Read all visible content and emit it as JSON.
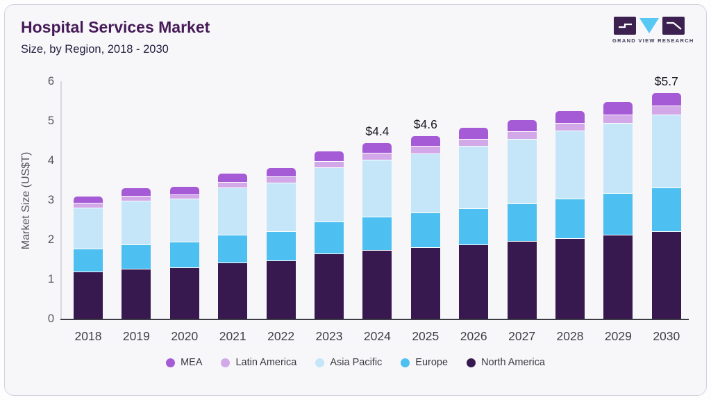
{
  "header": {
    "title": "Hospital Services Market",
    "subtitle": "Size, by Region, 2018 - 2030"
  },
  "logo": {
    "brand": "GRAND VIEW RESEARCH",
    "block_color": "#3b2050",
    "triangle_color": "#56c8f2"
  },
  "chart_data": {
    "type": "bar",
    "stacked": true,
    "title": "Hospital Services Market Size, by Region, 2018 - 2030",
    "ylabel": "Market Size (US$T)",
    "ylim": [
      0,
      6
    ],
    "yticks": [
      0,
      1,
      2,
      3,
      4,
      5,
      6
    ],
    "grid": false,
    "legend_position": "bottom",
    "categories": [
      "2018",
      "2019",
      "2020",
      "2021",
      "2022",
      "2023",
      "2024",
      "2025",
      "2026",
      "2027",
      "2028",
      "2029",
      "2030"
    ],
    "stack_order_bottom_to_top": [
      "North America",
      "Europe",
      "Asia Pacific",
      "Latin America",
      "MEA"
    ],
    "series": [
      {
        "name": "MEA",
        "color": "#a55bd6",
        "values": [
          0.16,
          0.18,
          0.19,
          0.21,
          0.2,
          0.24,
          0.24,
          0.25,
          0.28,
          0.28,
          0.31,
          0.31,
          0.31
        ]
      },
      {
        "name": "Latin America",
        "color": "#d2a8e8",
        "values": [
          0.13,
          0.13,
          0.11,
          0.14,
          0.16,
          0.16,
          0.18,
          0.19,
          0.17,
          0.19,
          0.19,
          0.21,
          0.23
        ]
      },
      {
        "name": "Asia Pacific",
        "color": "#c4e6f8",
        "values": [
          1.03,
          1.11,
          1.09,
          1.18,
          1.23,
          1.37,
          1.43,
          1.49,
          1.58,
          1.63,
          1.71,
          1.78,
          1.85
        ]
      },
      {
        "name": "Europe",
        "color": "#4dbff0",
        "values": [
          0.57,
          0.6,
          0.64,
          0.71,
          0.73,
          0.81,
          0.85,
          0.89,
          0.91,
          0.96,
          1.01,
          1.04,
          1.1
        ]
      },
      {
        "name": "North America",
        "color": "#38194f",
        "values": [
          1.2,
          1.27,
          1.3,
          1.42,
          1.48,
          1.65,
          1.73,
          1.8,
          1.88,
          1.96,
          2.03,
          2.13,
          2.21
        ]
      }
    ],
    "annotations": [
      {
        "category": "2024",
        "label": "$4.4"
      },
      {
        "category": "2025",
        "label": "$4.6"
      },
      {
        "category": "2030",
        "label": "$5.7"
      }
    ]
  }
}
